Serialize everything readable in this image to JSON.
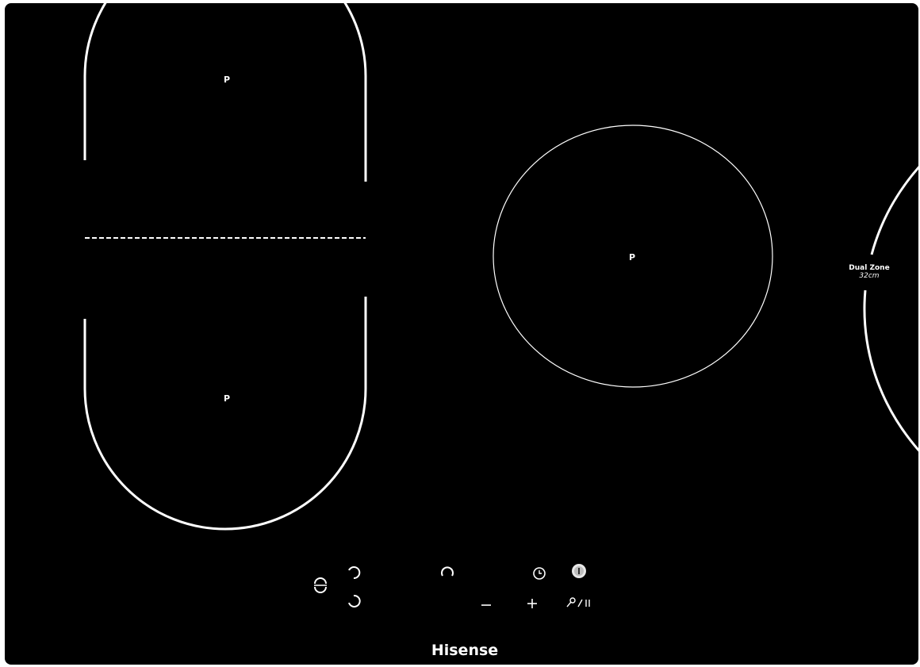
{
  "zones": {
    "top_left": {
      "label": "P"
    },
    "bottom_left": {
      "label": "P"
    },
    "right": {
      "label": "P",
      "badge_title": "Dual Zone",
      "badge_size": "32cm"
    }
  },
  "controls": [
    {
      "name": "bridge-zone-select-button",
      "icon": "bridge-icon"
    },
    {
      "name": "rear-left-zone-select-button",
      "icon": "zone-select-icon"
    },
    {
      "name": "front-left-zone-select-button",
      "icon": "zone-select-icon"
    },
    {
      "name": "right-zone-select-button",
      "icon": "zone-select-icon"
    },
    {
      "name": "timer-button",
      "icon": "clock-icon"
    },
    {
      "name": "power-button",
      "icon": "power-icon"
    },
    {
      "name": "minus-button",
      "icon": "minus-icon"
    },
    {
      "name": "plus-button",
      "icon": "plus-icon"
    },
    {
      "name": "lock-pause-button",
      "icon": "key-pause-icon"
    }
  ],
  "brand": {
    "name": "Hisense"
  },
  "colors": {
    "glass": "#000000",
    "markings": "#ffffff",
    "frame": "#ffffff"
  }
}
